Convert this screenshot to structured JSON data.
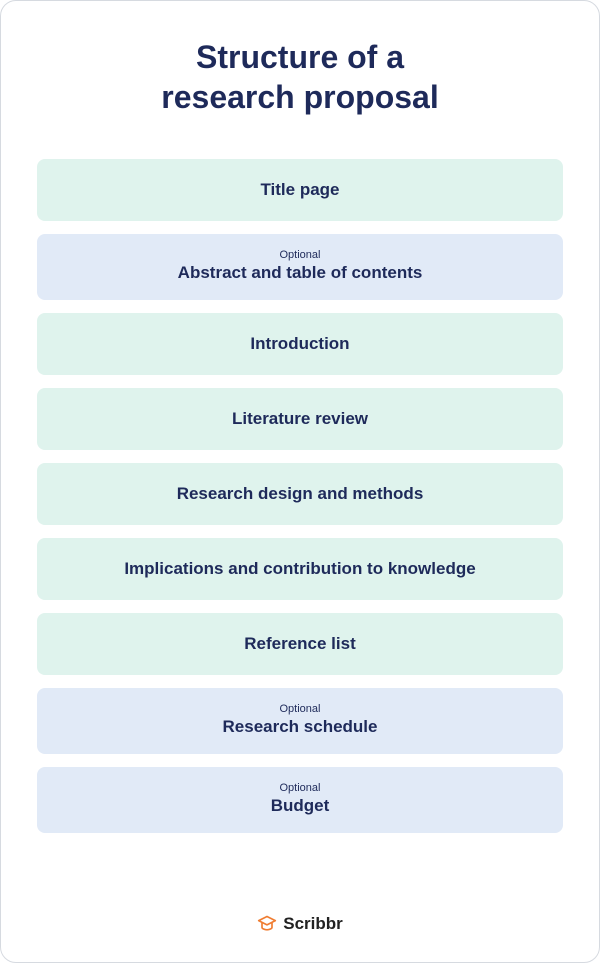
{
  "title_line1": "Structure of a",
  "title_line2": "research proposal",
  "colors": {
    "text": "#1e2a5a",
    "required_bg": "#dff3ed",
    "optional_bg": "#e1eaf7",
    "border": "#d6dae0",
    "logo_icon": "#f07d32",
    "logo_text": "#222222"
  },
  "optional_word": "Optional",
  "items": [
    {
      "label": "Title page",
      "optional": false
    },
    {
      "label": "Abstract and table of contents",
      "optional": true
    },
    {
      "label": "Introduction",
      "optional": false
    },
    {
      "label": "Literature review",
      "optional": false
    },
    {
      "label": "Research design and methods",
      "optional": false
    },
    {
      "label": "Implications and contribution to knowledge",
      "optional": false
    },
    {
      "label": "Reference list",
      "optional": false
    },
    {
      "label": "Research schedule",
      "optional": true
    },
    {
      "label": "Budget",
      "optional": true
    }
  ],
  "brand": "Scribbr"
}
